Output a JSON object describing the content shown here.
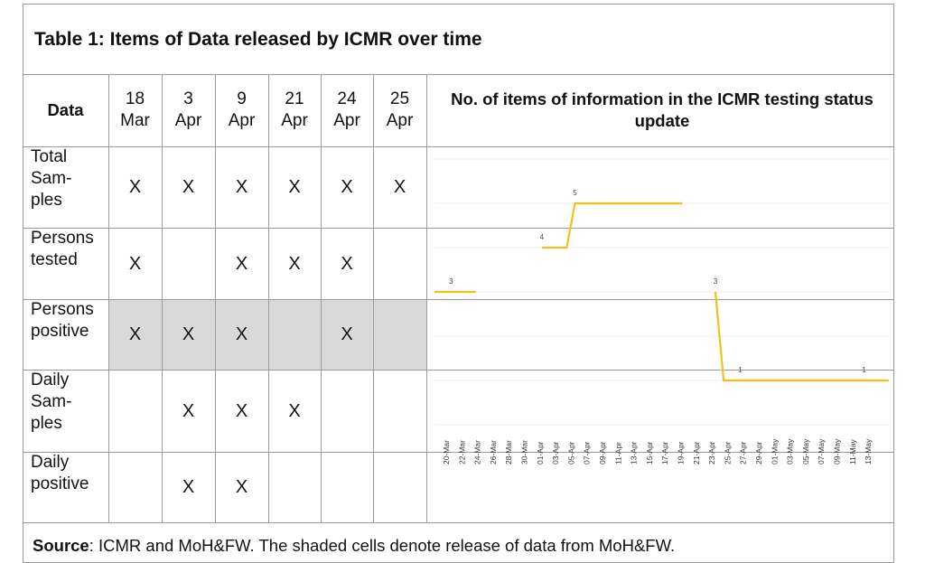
{
  "table_title": "Table 1: Items of Data released by ICMR over time",
  "header": {
    "data_label": "Data",
    "dates": [
      {
        "day": "18",
        "month": "Mar"
      },
      {
        "day": "3",
        "month": "Apr"
      },
      {
        "day": "9",
        "month": "Apr"
      },
      {
        "day": "21",
        "month": "Apr"
      },
      {
        "day": "24",
        "month": "Apr"
      },
      {
        "day": "25",
        "month": "Apr"
      }
    ]
  },
  "rows": [
    {
      "label": "Total Sam-ples",
      "lines": [
        "Total",
        "Sam-",
        "ples"
      ],
      "marks": [
        "X",
        "X",
        "X",
        "X",
        "X",
        "X"
      ],
      "shaded": false
    },
    {
      "label": "Persons tested",
      "lines": [
        "Persons",
        "tested"
      ],
      "marks": [
        "X",
        "",
        "X",
        "X",
        "X",
        ""
      ],
      "shaded": false
    },
    {
      "label": "Persons positive",
      "lines": [
        "Persons",
        "positive"
      ],
      "marks": [
        "X",
        "X",
        "X",
        "",
        "X",
        ""
      ],
      "shaded": true
    },
    {
      "label": "Daily Sam-ples",
      "lines": [
        "Daily",
        "Sam-",
        "ples"
      ],
      "marks": [
        "",
        "X",
        "X",
        "X",
        "",
        ""
      ],
      "shaded": false
    },
    {
      "label": "Daily positive",
      "lines": [
        "Daily",
        "positive"
      ],
      "marks": [
        "",
        "X",
        "X",
        "",
        "",
        ""
      ],
      "shaded": false
    }
  ],
  "source": {
    "label": "Source",
    "text": ": ICMR and MoH&FW. The shaded cells denote release of data from MoH&FW."
  },
  "chart_data": {
    "type": "line",
    "title": "No. of items of information in the ICMR testing status update",
    "xlabel": "",
    "ylabel": "",
    "ylim": [
      0,
      6
    ],
    "grid": true,
    "legend": "none",
    "line_color": "#f2c21a",
    "x_tick_labels": [
      "20-Mar",
      "22-Mar",
      "24-Mar",
      "26-Mar",
      "28-Mar",
      "30-Mar",
      "01-Apr",
      "03-Apr",
      "05-Apr",
      "07-Apr",
      "09-Apr",
      "11-Apr",
      "13-Apr",
      "15-Apr",
      "17-Apr",
      "19-Apr",
      "21-Apr",
      "23-Apr",
      "25-Apr",
      "27-Apr",
      "29-Apr",
      "01-May",
      "03-May",
      "05-May",
      "07-May",
      "09-May",
      "11-May",
      "13-May"
    ],
    "segments": [
      {
        "points": [
          [
            "2020-03-20",
            3
          ],
          [
            "2020-03-25",
            3
          ]
        ]
      },
      {
        "points": [
          [
            "2020-04-02",
            4
          ],
          [
            "2020-04-05",
            4
          ],
          [
            "2020-04-06",
            5
          ],
          [
            "2020-04-19",
            5
          ]
        ]
      },
      {
        "points": [
          [
            "2020-04-23",
            3
          ],
          [
            "2020-04-24",
            1
          ],
          [
            "2020-05-14",
            1
          ]
        ]
      }
    ],
    "data_labels": [
      {
        "x": "2020-03-22",
        "y": 3,
        "text": "3"
      },
      {
        "x": "2020-04-02",
        "y": 4,
        "text": "4"
      },
      {
        "x": "2020-04-06",
        "y": 5,
        "text": "5"
      },
      {
        "x": "2020-04-23",
        "y": 3,
        "text": "3"
      },
      {
        "x": "2020-04-26",
        "y": 1,
        "text": "1"
      },
      {
        "x": "2020-05-11",
        "y": 1,
        "text": "1"
      }
    ]
  }
}
